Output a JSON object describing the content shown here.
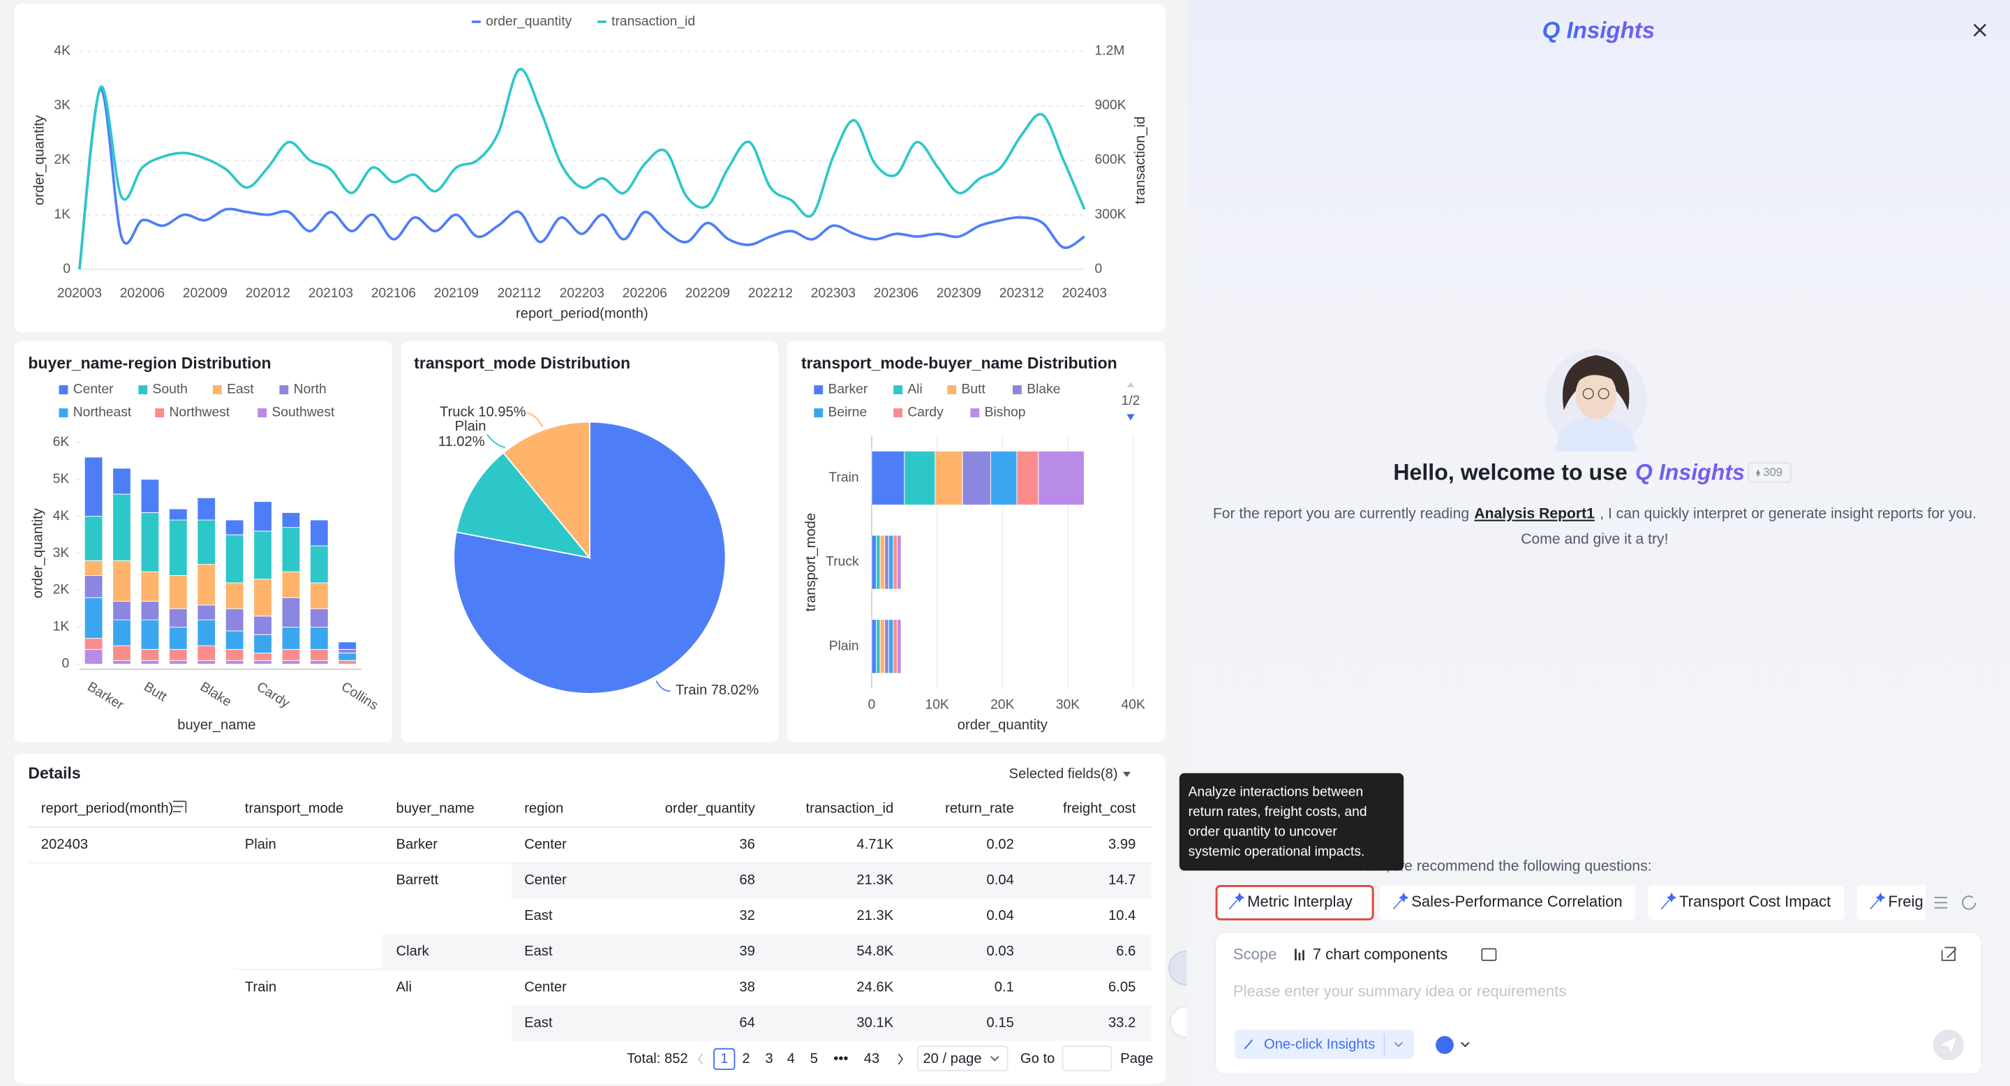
{
  "chart_data": [
    {
      "type": "line",
      "x_label": "report_period(month)",
      "y_label": "order_quantity",
      "y2_label": "transaction_id",
      "legend": "top",
      "grid": true,
      "categories": [
        "202003",
        null,
        null,
        "202006",
        null,
        null,
        "202009",
        null,
        null,
        "202012",
        null,
        null,
        "202103",
        null,
        null,
        "202106",
        null,
        null,
        "202109",
        null,
        null,
        "202112",
        null,
        null,
        "202203",
        null,
        null,
        "202206",
        null,
        null,
        "202209",
        null,
        null,
        "202212",
        null,
        null,
        "202303",
        null,
        null,
        "202306",
        null,
        null,
        "202309",
        null,
        null,
        "202312",
        null,
        null,
        "202403"
      ],
      "series": [
        {
          "name": "order_quantity",
          "color": "#4e7ef7",
          "values": [
            0,
            3300,
            600,
            900,
            800,
            1000,
            900,
            1100,
            1050,
            1000,
            1050,
            700,
            1050,
            700,
            1000,
            550,
            950,
            700,
            1000,
            600,
            800,
            1050,
            500,
            950,
            650,
            1000,
            550,
            1050,
            700,
            500,
            850,
            550,
            450,
            600,
            700,
            550,
            800,
            650,
            550,
            650,
            600,
            650,
            600,
            800,
            900,
            950,
            850,
            400,
            600
          ]
        },
        {
          "name": "transaction_id",
          "color": "#2ec7c9",
          "axis": "y2",
          "values": [
            0,
            1000000,
            400000,
            560000,
            620000,
            640000,
            610000,
            550000,
            450000,
            560000,
            700000,
            600000,
            550000,
            420000,
            560000,
            480000,
            520000,
            430000,
            560000,
            600000,
            750000,
            1100000,
            880000,
            580000,
            450000,
            500000,
            420000,
            580000,
            650000,
            400000,
            350000,
            560000,
            700000,
            450000,
            380000,
            300000,
            620000,
            820000,
            580000,
            520000,
            700000,
            560000,
            420000,
            500000,
            560000,
            740000,
            850000,
            600000,
            330000
          ]
        }
      ],
      "ylim": [
        0,
        4000
      ],
      "yticks": [
        0,
        {
          "value": 1000,
          "label": "1K"
        },
        {
          "value": 2000,
          "label": "2K"
        },
        {
          "value": 3000,
          "label": "3K"
        },
        {
          "value": 4000,
          "label": "4K"
        }
      ],
      "y2lim": [
        0,
        1200000
      ],
      "y2ticks": [
        0,
        {
          "value": 300000,
          "label": "300K"
        },
        {
          "value": 600000,
          "label": "600K"
        },
        {
          "value": 900000,
          "label": "900K"
        },
        {
          "value": 1200000,
          "label": "1.2M"
        }
      ]
    },
    {
      "type": "bar",
      "stacked": true,
      "title": "buyer_name-region Distribution",
      "x_label": "buyer_name",
      "y_label": "order_quantity",
      "legend": "top-left",
      "grid": false,
      "categories": [
        "Barker",
        null,
        "Butt",
        null,
        "Blake",
        null,
        "Cardy",
        null,
        null,
        "Collins"
      ],
      "series": [
        {
          "name": "Center",
          "color": "#4e7ef7",
          "values": [
            1600,
            700,
            900,
            300,
            600,
            400,
            800,
            400,
            700,
            200
          ]
        },
        {
          "name": "South",
          "color": "#2ec7c9",
          "values": [
            1200,
            1800,
            1600,
            1500,
            1200,
            1300,
            1300,
            1200,
            1000,
            0
          ]
        },
        {
          "name": "East",
          "color": "#ffb36b",
          "values": [
            400,
            1100,
            800,
            900,
            1100,
            700,
            1000,
            700,
            700,
            0
          ]
        },
        {
          "name": "North",
          "color": "#8b86e0",
          "values": [
            600,
            500,
            500,
            500,
            400,
            600,
            500,
            800,
            500,
            100
          ]
        },
        {
          "name": "Northeast",
          "color": "#3ba6f0",
          "values": [
            1100,
            700,
            800,
            600,
            700,
            500,
            500,
            600,
            600,
            200
          ]
        },
        {
          "name": "Northwest",
          "color": "#fa8c8c",
          "values": [
            300,
            400,
            300,
            300,
            400,
            300,
            200,
            300,
            300,
            100
          ]
        },
        {
          "name": "Southwest",
          "color": "#b88be8",
          "values": [
            400,
            100,
            100,
            100,
            100,
            100,
            100,
            100,
            100,
            0
          ]
        }
      ],
      "ylim": [
        0,
        6000
      ],
      "yticks": [
        0,
        {
          "value": 1000,
          "label": "1K"
        },
        {
          "value": 2000,
          "label": "2K"
        },
        {
          "value": 3000,
          "label": "3K"
        },
        {
          "value": 4000,
          "label": "4K"
        },
        {
          "value": 5000,
          "label": "5K"
        },
        {
          "value": 6000,
          "label": "6K"
        }
      ]
    },
    {
      "type": "pie",
      "title": "transport_mode Distribution",
      "categories": [
        "Train",
        "Plain",
        "Truck"
      ],
      "values": [
        78.02,
        11.02,
        10.95
      ],
      "value_labels": [
        "78.02%",
        "11.02%",
        "10.95%"
      ],
      "colors": [
        "#4e7ef7",
        "#2ec7c9",
        "#ffb36b"
      ]
    },
    {
      "type": "bar",
      "stacked": true,
      "horizontal": true,
      "title": "transport_mode-buyer_name Distribution",
      "x_label": "order_quantity",
      "y_label": "transport_mode",
      "legend": "top-left",
      "legend_page": "1/2",
      "grid": true,
      "categories": [
        "Train",
        "Truck",
        "Plain"
      ],
      "series": [
        {
          "name": "Barker",
          "color": "#4e7ef7",
          "values": [
            5000,
            700,
            700
          ]
        },
        {
          "name": "Ali",
          "color": "#2ec7c9",
          "values": [
            4700,
            600,
            600
          ]
        },
        {
          "name": "Butt",
          "color": "#ffb36b",
          "values": [
            4200,
            700,
            700
          ]
        },
        {
          "name": "Blake",
          "color": "#8b86e0",
          "values": [
            4300,
            600,
            600
          ]
        },
        {
          "name": "Beirne",
          "color": "#3ba6f0",
          "values": [
            4000,
            700,
            700
          ]
        },
        {
          "name": "Cardy",
          "color": "#fa8c8c",
          "values": [
            3300,
            600,
            600
          ]
        },
        {
          "name": "Bishop",
          "color": "#b88be8",
          "values": [
            7000,
            600,
            600
          ]
        }
      ],
      "xlim": [
        0,
        40000
      ],
      "xticks": [
        0,
        {
          "value": 10000,
          "label": "10K"
        },
        {
          "value": 20000,
          "label": "20K"
        },
        {
          "value": 30000,
          "label": "30K"
        },
        {
          "value": 40000,
          "label": "40K"
        }
      ]
    }
  ],
  "details": {
    "title": "Details",
    "selected_fields": "Selected fields(8)",
    "columns": [
      "report_period(month)",
      "transport_mode",
      "buyer_name",
      "region",
      "order_quantity",
      "transaction_id",
      "return_rate",
      "freight_cost"
    ],
    "rows": [
      [
        "202403",
        "Plain",
        "Barker",
        "Center",
        36,
        "4.71K",
        0.02,
        3.99
      ],
      [
        null,
        null,
        "Barrett",
        "Center",
        68,
        "21.3K",
        0.04,
        14.7
      ],
      [
        null,
        null,
        null,
        "East",
        32,
        "21.3K",
        0.04,
        10.4
      ],
      [
        null,
        null,
        "Clark",
        "East",
        39,
        "54.8K",
        0.03,
        6.6
      ],
      [
        null,
        "Train",
        "Ali",
        "Center",
        38,
        "24.6K",
        0.1,
        6.05
      ],
      [
        null,
        null,
        null,
        "East",
        64,
        "30.1K",
        0.15,
        33.2
      ]
    ],
    "pagination": {
      "total": "Total: 852",
      "pages": [
        "1",
        "2",
        "3",
        "4",
        "5",
        "•••",
        "43"
      ],
      "page_size": "20 / page",
      "goto": "Go to",
      "page_suffix": "Page"
    }
  },
  "assistant": {
    "title": "Q Insights",
    "greeting": "Hello, welcome to use",
    "brand": "Q Insights",
    "badge": "309",
    "intro": [
      "For the report you are currently reading",
      "Analysis Report1",
      ", I can quickly interpret or generate insight reports for you."
    ],
    "intro2": "Come and give it a try!",
    "tooltip": [
      "Analyze interactions between",
      "return rates, freight costs, and",
      "order quantity to uncover",
      "systemic operational impacts."
    ],
    "recommend": "For the current dashboard, we recommend the following questions:",
    "questions": [
      "Metric Interplay",
      "Sales-Performance Correlation",
      "Transport Cost Impact",
      "Freig"
    ],
    "scope_label": "Scope",
    "scope": "7 chart components",
    "placeholder": "Please enter your summary idea or requirements",
    "action": "One-click Insights"
  }
}
